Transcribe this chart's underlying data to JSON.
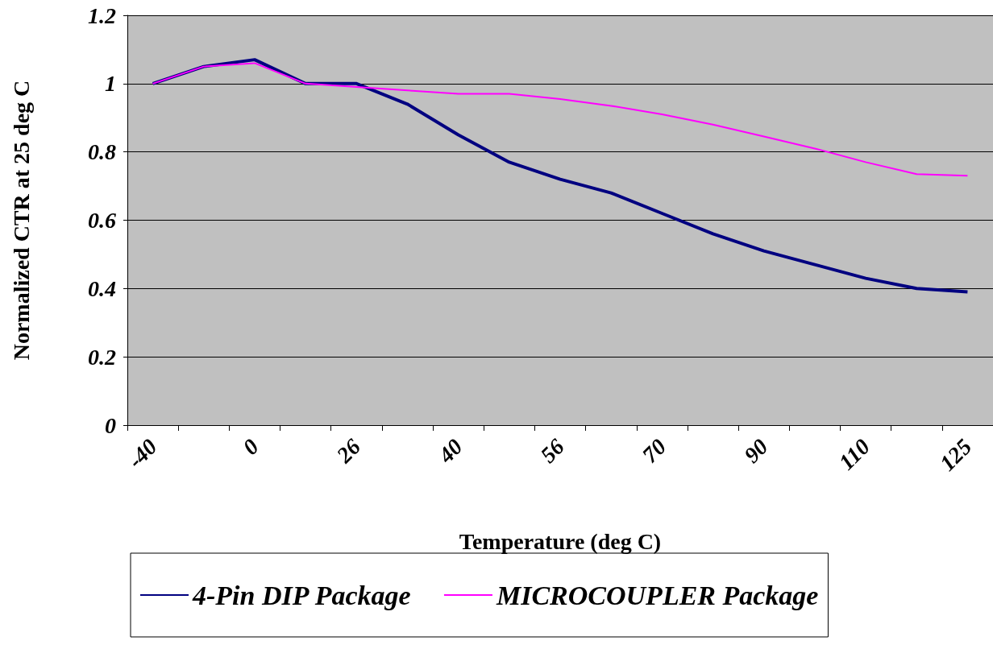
{
  "chart_data": {
    "type": "line",
    "xlabel": "Temperature (deg C)",
    "ylabel": "Normalized CTR at 25 deg C",
    "categories": [
      "-40",
      null,
      "0",
      null,
      "26",
      null,
      "40",
      null,
      "56",
      null,
      "70",
      null,
      "90",
      null,
      "110",
      null,
      "125"
    ],
    "series": [
      {
        "name": "4-Pin DIP Package",
        "color": "#000080",
        "values": [
          1.0,
          1.05,
          1.07,
          1.0,
          1.0,
          0.94,
          0.85,
          0.77,
          0.72,
          0.68,
          0.62,
          0.56,
          0.51,
          0.47,
          0.43,
          0.4,
          0.39
        ]
      },
      {
        "name": "MICROCOUPLER Package",
        "color": "#ff00ff",
        "values": [
          1.0,
          1.05,
          1.06,
          1.0,
          0.99,
          0.98,
          0.97,
          0.97,
          0.955,
          0.935,
          0.91,
          0.88,
          0.845,
          0.81,
          0.77,
          0.735,
          0.73
        ]
      }
    ],
    "ylim": [
      0,
      1.2
    ],
    "yticks": [
      0,
      0.2,
      0.4,
      0.6,
      0.8,
      1,
      1.2
    ],
    "grid": "y",
    "legend": "bottom",
    "marker": "none",
    "line_style": "solid"
  }
}
